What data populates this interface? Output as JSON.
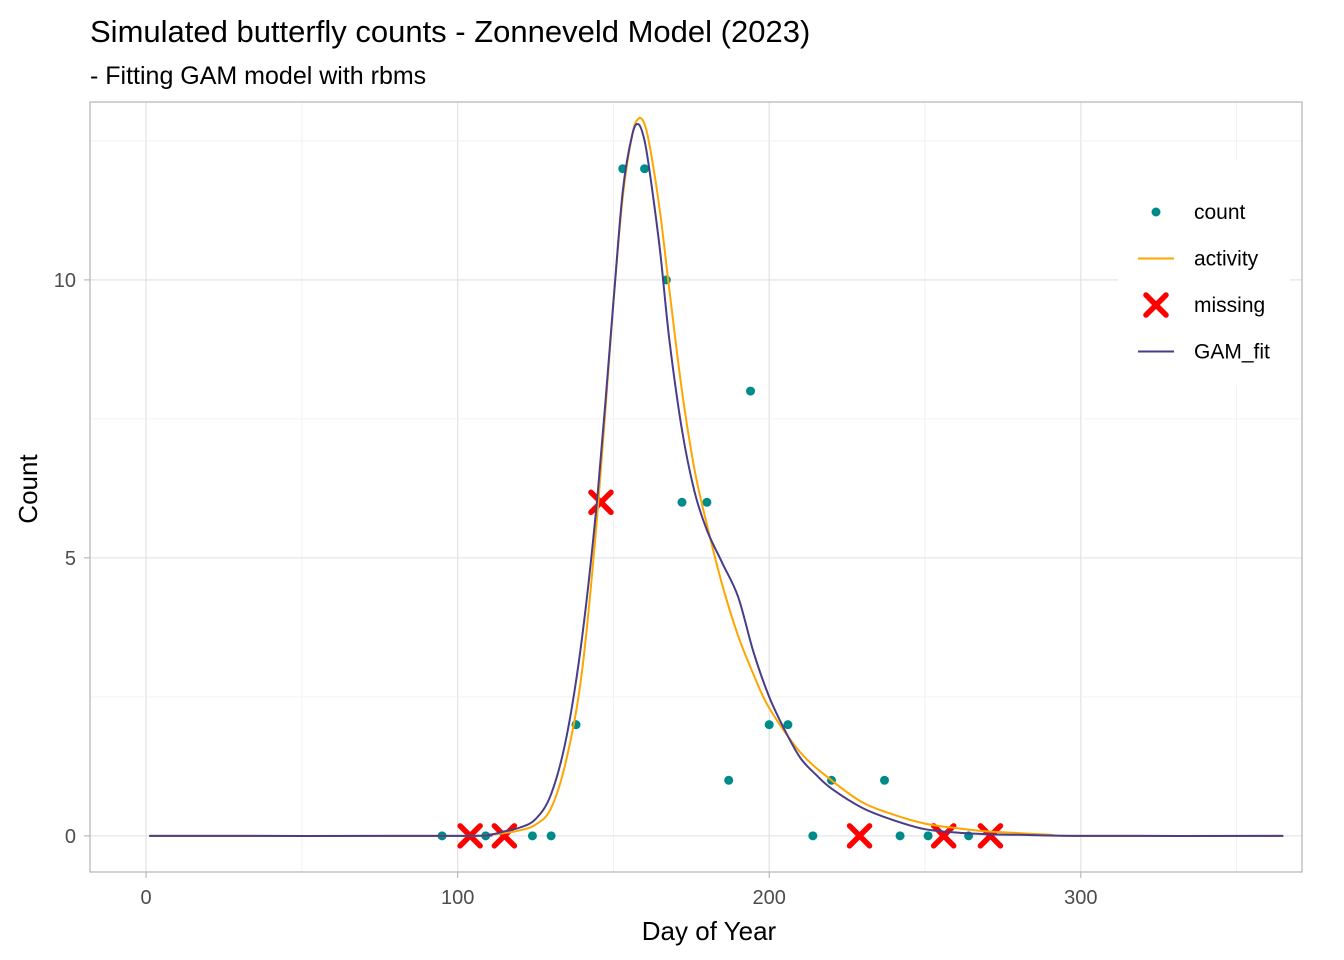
{
  "chart_data": {
    "type": "line",
    "title": "Simulated butterfly counts - Zonneveld Model (2023)",
    "subtitle": "- Fitting GAM model with rbms",
    "xlabel": "Day of Year",
    "ylabel": "Count",
    "xlim": [
      -18,
      371
    ],
    "ylim": [
      -0.65,
      13.2
    ],
    "x_ticks": [
      0,
      100,
      200,
      300
    ],
    "y_ticks": [
      0,
      5,
      10
    ],
    "grid": true,
    "legend_position": "top-right",
    "legend": [
      {
        "key": "count",
        "label": "count",
        "kind": "point",
        "color": "#008B8B"
      },
      {
        "key": "activity",
        "label": "activity",
        "kind": "line",
        "color": "#FFA500"
      },
      {
        "key": "missing",
        "label": "missing",
        "kind": "cross",
        "color": "#FF0000"
      },
      {
        "key": "gam_fit",
        "label": "GAM_fit",
        "kind": "line",
        "color": "#483D8B"
      }
    ],
    "series": [
      {
        "key": "count",
        "type": "scatter",
        "color": "#008B8B",
        "x": [
          95,
          109,
          124,
          130,
          138,
          153,
          160,
          167,
          172,
          180,
          187,
          194,
          200,
          206,
          214,
          220,
          237,
          242,
          251,
          264
        ],
        "y": [
          0,
          0,
          0,
          0,
          2,
          12,
          12,
          10,
          6,
          6,
          1,
          8,
          2,
          2,
          0,
          1,
          1,
          0,
          0,
          0
        ]
      },
      {
        "key": "missing",
        "type": "scatter",
        "marker": "x",
        "color": "#FF0000",
        "x": [
          104,
          115,
          146,
          229,
          256,
          271
        ],
        "y": [
          0,
          0,
          6,
          0,
          0,
          0
        ]
      },
      {
        "key": "activity",
        "type": "line",
        "color": "#FFA500",
        "x": [
          1,
          100,
          110,
          115,
          120,
          125,
          130,
          135,
          140,
          145,
          150,
          153,
          156,
          158,
          160,
          162,
          165,
          168,
          172,
          176,
          180,
          185,
          190,
          195,
          200,
          210,
          220,
          230,
          240,
          250,
          260,
          270,
          280,
          290,
          300,
          365
        ],
        "y": [
          0,
          0,
          0.02,
          0.05,
          0.1,
          0.2,
          0.5,
          1.4,
          3.0,
          5.9,
          9.6,
          11.5,
          12.6,
          12.9,
          12.8,
          12.3,
          11.2,
          9.8,
          8.0,
          6.6,
          5.6,
          4.5,
          3.6,
          2.9,
          2.3,
          1.5,
          1.0,
          0.6,
          0.38,
          0.22,
          0.14,
          0.08,
          0.05,
          0.02,
          0,
          0
        ]
      },
      {
        "key": "gam_fit",
        "type": "line",
        "color": "#483D8B",
        "x": [
          1,
          100,
          110,
          115,
          120,
          125,
          130,
          135,
          140,
          145,
          150,
          153,
          156,
          158,
          160,
          162,
          165,
          168,
          172,
          176,
          180,
          185,
          190,
          195,
          200,
          205,
          210,
          215,
          220,
          230,
          240,
          250,
          260,
          270,
          280,
          300,
          365
        ],
        "y": [
          0,
          0,
          0.02,
          0.08,
          0.15,
          0.3,
          0.75,
          1.8,
          3.6,
          6.2,
          9.6,
          11.6,
          12.6,
          12.8,
          12.5,
          11.8,
          10.5,
          8.9,
          7.3,
          6.2,
          5.5,
          4.9,
          4.3,
          3.3,
          2.5,
          1.9,
          1.4,
          1.1,
          0.85,
          0.5,
          0.28,
          0.12,
          0.06,
          0.03,
          0.02,
          0,
          0
        ]
      }
    ]
  }
}
